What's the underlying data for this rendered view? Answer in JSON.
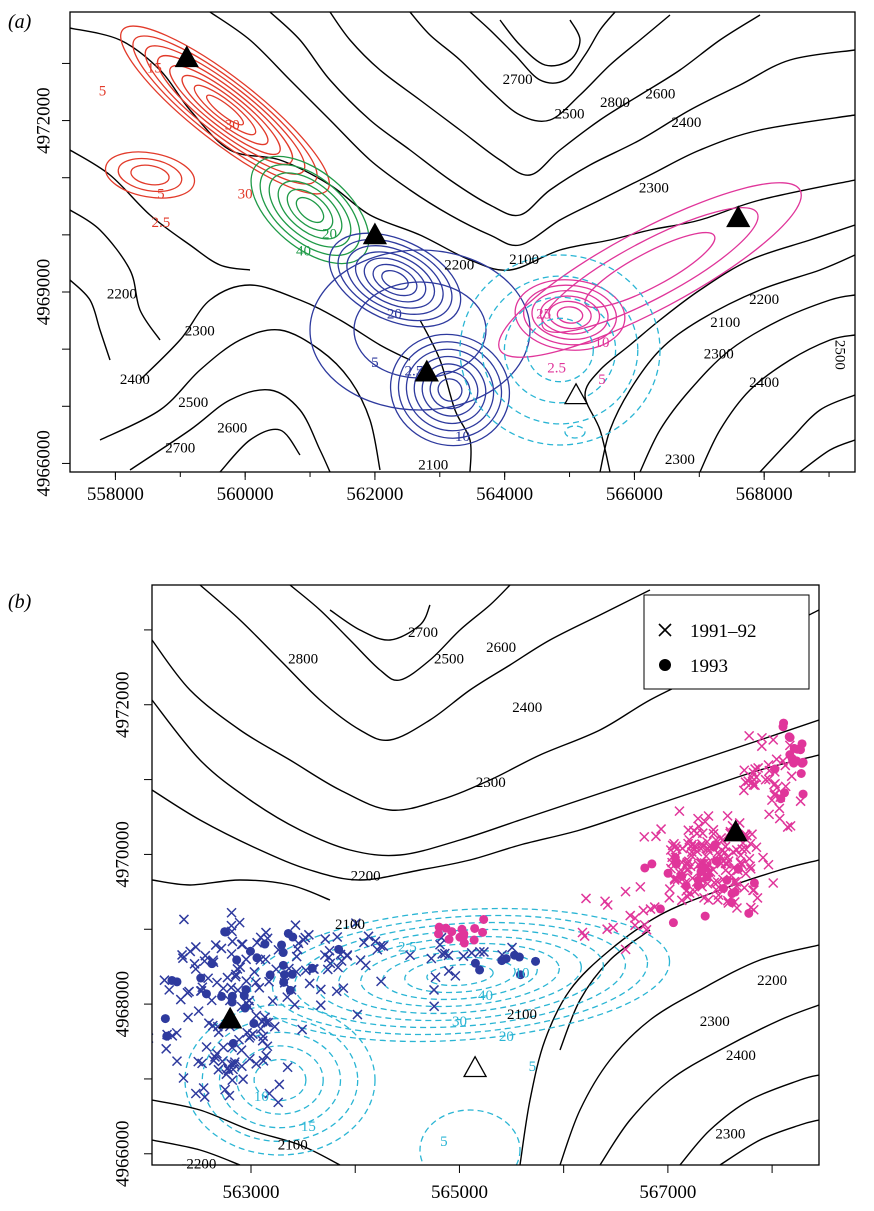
{
  "chart_data": [
    {
      "type": "contour",
      "panel": "a",
      "panel_label": "(a)",
      "x_ticks": [
        "558000",
        "560000",
        "562000",
        "564000",
        "566000",
        "568000"
      ],
      "y_ticks": [
        "4966000",
        "4969000",
        "4972000"
      ],
      "xlim": [
        557300,
        569400
      ],
      "ylim": [
        4965850,
        4973900
      ],
      "elevation_contours": {
        "color": "#000000",
        "labels": [
          {
            "text": "2800",
            "x": 565700,
            "y": 4972300
          },
          {
            "text": "2700",
            "x": 564200,
            "y": 4972700
          },
          {
            "text": "2500",
            "x": 565000,
            "y": 4972100
          },
          {
            "text": "2600",
            "x": 566400,
            "y": 4972450
          },
          {
            "text": "2400",
            "x": 566800,
            "y": 4971950
          },
          {
            "text": "2300",
            "x": 566300,
            "y": 4970800
          },
          {
            "text": "2200",
            "x": 563300,
            "y": 4969450
          },
          {
            "text": "2100",
            "x": 564300,
            "y": 4969550
          },
          {
            "text": "2200",
            "x": 558100,
            "y": 4968950
          },
          {
            "text": "2300",
            "x": 559300,
            "y": 4968300
          },
          {
            "text": "2400",
            "x": 558300,
            "y": 4967450
          },
          {
            "text": "2500",
            "x": 559200,
            "y": 4967050
          },
          {
            "text": "2600",
            "x": 559800,
            "y": 4966600
          },
          {
            "text": "2700",
            "x": 559000,
            "y": 4966250
          },
          {
            "text": "2100",
            "x": 562900,
            "y": 4965950
          },
          {
            "text": "2100",
            "x": 567400,
            "y": 4968450
          },
          {
            "text": "2200",
            "x": 568000,
            "y": 4968850
          },
          {
            "text": "2300",
            "x": 567300,
            "y": 4967900
          },
          {
            "text": "2400",
            "x": 568000,
            "y": 4967400
          },
          {
            "text": "2300",
            "x": 566700,
            "y": 4966050
          },
          {
            "text": "2500",
            "x": 569150,
            "y": 4967900
          }
        ]
      },
      "density_contours": [
        {
          "name": "red",
          "color": "#e23a2a",
          "labels": [
            {
              "text": "15",
              "x": 558600,
              "y": 4972900
            },
            {
              "text": "5",
              "x": 557800,
              "y": 4972500
            },
            {
              "text": "30",
              "x": 559800,
              "y": 4971900
            },
            {
              "text": "30",
              "x": 560000,
              "y": 4970700
            },
            {
              "text": "5",
              "x": 558700,
              "y": 4970700
            },
            {
              "text": "2.5",
              "x": 558700,
              "y": 4970200
            }
          ]
        },
        {
          "name": "green",
          "color": "#1f9a47",
          "labels": [
            {
              "text": "20",
              "x": 561300,
              "y": 4970000
            },
            {
              "text": "40",
              "x": 560900,
              "y": 4969700
            }
          ]
        },
        {
          "name": "blue",
          "color": "#2e3a9e",
          "labels": [
            {
              "text": "20",
              "x": 562300,
              "y": 4968600
            },
            {
              "text": "5",
              "x": 562000,
              "y": 4967750
            },
            {
              "text": "2.5",
              "x": 562600,
              "y": 4967600
            },
            {
              "text": "10",
              "x": 563350,
              "y": 4966450
            }
          ]
        },
        {
          "name": "magenta",
          "color": "#e0359a",
          "labels": [
            {
              "text": "25",
              "x": 564600,
              "y": 4968600
            },
            {
              "text": "10",
              "x": 565500,
              "y": 4968100
            },
            {
              "text": "2.5",
              "x": 564800,
              "y": 4967650
            },
            {
              "text": "5",
              "x": 565500,
              "y": 4967450
            }
          ]
        },
        {
          "name": "cyan-dashed",
          "color": "#2ab5d4",
          "labels": []
        }
      ],
      "markers": {
        "filled_triangles": [
          [
            559100,
            4973100
          ],
          [
            562000,
            4970000
          ],
          [
            562800,
            4967600
          ],
          [
            567600,
            4970300
          ]
        ],
        "open_triangles": [
          [
            565100,
            4967200
          ]
        ]
      }
    },
    {
      "type": "scatter",
      "panel": "b",
      "panel_label": "(b)",
      "x_ticks": [
        "563000",
        "565000",
        "567000"
      ],
      "y_ticks": [
        "4966000",
        "4968000",
        "4970000",
        "4972000"
      ],
      "xlim": [
        562050,
        568450
      ],
      "ylim": [
        4965850,
        4973600
      ],
      "legend": {
        "position": "top-right",
        "entries": [
          {
            "symbol": "cross",
            "label": "1991–92"
          },
          {
            "symbol": "dot",
            "label": "1993"
          }
        ]
      },
      "elevation_labels": [
        {
          "text": "2800",
          "x": 563500,
          "y": 4972600
        },
        {
          "text": "2700",
          "x": 564650,
          "y": 4972950
        },
        {
          "text": "2500",
          "x": 564900,
          "y": 4972600
        },
        {
          "text": "2600",
          "x": 565400,
          "y": 4972750
        },
        {
          "text": "2400",
          "x": 565650,
          "y": 4971950
        },
        {
          "text": "2300",
          "x": 565300,
          "y": 4970950
        },
        {
          "text": "2200",
          "x": 564100,
          "y": 4969700
        },
        {
          "text": "2100",
          "x": 563950,
          "y": 4969050
        },
        {
          "text": "2100",
          "x": 565600,
          "y": 4967850
        },
        {
          "text": "2200",
          "x": 568000,
          "y": 4968300
        },
        {
          "text": "2300",
          "x": 567450,
          "y": 4967750
        },
        {
          "text": "2400",
          "x": 567700,
          "y": 4967300
        },
        {
          "text": "2300",
          "x": 567600,
          "y": 4966250
        },
        {
          "text": "2100",
          "x": 563400,
          "y": 4966100
        },
        {
          "text": "-2200",
          "x": 562500,
          "y": 4965850
        }
      ],
      "density_labels": [
        {
          "text": "2.5",
          "x": 564500,
          "y": 4968750
        },
        {
          "text": "40",
          "x": 565250,
          "y": 4968100
        },
        {
          "text": "10",
          "x": 565600,
          "y": 4968400
        },
        {
          "text": "30",
          "x": 565000,
          "y": 4967750
        },
        {
          "text": "20",
          "x": 565450,
          "y": 4967550
        },
        {
          "text": "5",
          "x": 565700,
          "y": 4967150
        },
        {
          "text": "10",
          "x": 563100,
          "y": 4966750
        },
        {
          "text": "15",
          "x": 563550,
          "y": 4966350
        },
        {
          "text": "5",
          "x": 564850,
          "y": 4966150
        }
      ],
      "series": [
        {
          "name": "1991–92",
          "symbol": "cross",
          "colors": [
            "#2e3a9e",
            "#e0359a"
          ]
        },
        {
          "name": "1993",
          "symbol": "dot",
          "colors": [
            "#2e3a9e",
            "#e0359a"
          ]
        }
      ],
      "markers": {
        "filled_triangles": [
          [
            562800,
            4967800
          ],
          [
            567650,
            4970300
          ]
        ],
        "open_triangles": [
          [
            565150,
            4967150
          ]
        ]
      }
    }
  ]
}
